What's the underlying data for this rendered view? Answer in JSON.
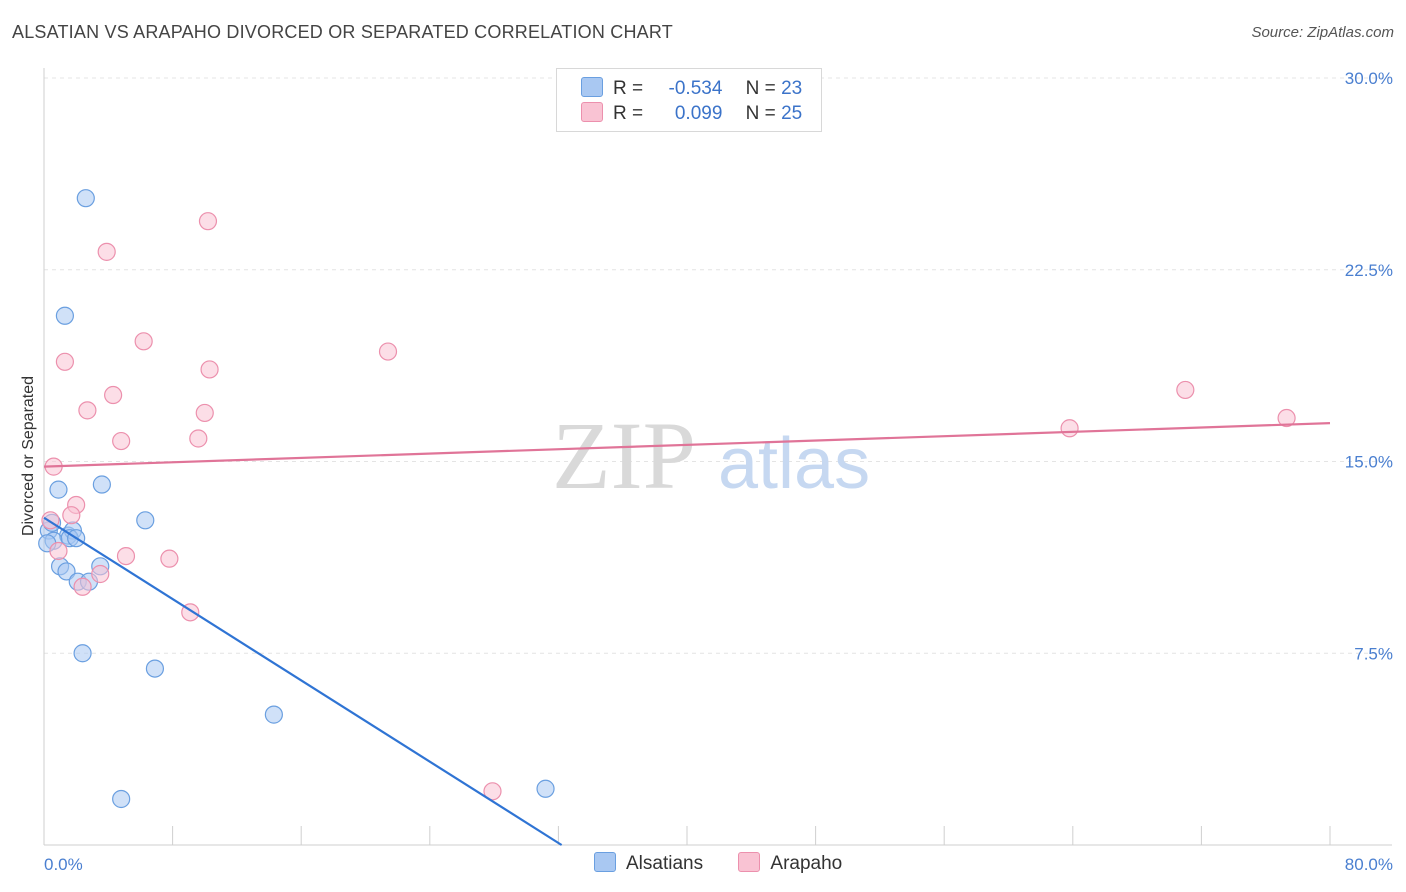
{
  "title": "ALSATIAN VS ARAPAHO DIVORCED OR SEPARATED CORRELATION CHART",
  "source": "Source: ZipAtlas.com",
  "watermark": {
    "zip": "ZIP",
    "atlas": "atlas"
  },
  "legend": {
    "rows": [
      {
        "r_label": "R =",
        "r_value": "-0.534",
        "n_label": "N =",
        "n_value": "23",
        "color": "#a9c8f2",
        "border": "#6a9fe0"
      },
      {
        "r_label": "R =",
        "r_value": "0.099",
        "n_label": "N =",
        "n_value": "25",
        "color": "#f9c3d3",
        "border": "#ec90ad"
      }
    ]
  },
  "bottom_legend": [
    {
      "label": "Alsatians",
      "color": "#a9c8f2",
      "border": "#6a9fe0"
    },
    {
      "label": "Arapaho",
      "color": "#f9c3d3",
      "border": "#ec90ad"
    }
  ],
  "chart_data": {
    "type": "scatter",
    "title": "ALSATIAN VS ARAPAHO DIVORCED OR SEPARATED CORRELATION CHART",
    "xlabel": "",
    "ylabel": "Divorced or Separated",
    "xlim": [
      0,
      80
    ],
    "ylim": [
      0,
      30
    ],
    "x_tick_labels": [
      "0.0%",
      "80.0%"
    ],
    "y_ticks": [
      7.5,
      15.0,
      22.5,
      30.0
    ],
    "y_tick_labels": [
      "7.5%",
      "15.0%",
      "22.5%",
      "30.0%"
    ],
    "grid": true,
    "series": [
      {
        "name": "Alsatians",
        "color": "#6a9fe0",
        "fill": "#a9c8f2",
        "line_color": "#2f74d4",
        "trend": {
          "x": [
            0,
            32.2
          ],
          "y": [
            12.8,
            0
          ]
        },
        "points": [
          [
            2.6,
            25.3
          ],
          [
            1.3,
            20.7
          ],
          [
            0.9,
            13.9
          ],
          [
            3.6,
            14.1
          ],
          [
            6.3,
            12.7
          ],
          [
            0.3,
            12.3
          ],
          [
            1.5,
            12.1
          ],
          [
            1.8,
            12.3
          ],
          [
            0.6,
            11.9
          ],
          [
            1.6,
            12.0
          ],
          [
            0.2,
            11.8
          ],
          [
            2.0,
            12.0
          ],
          [
            0.5,
            12.6
          ],
          [
            1.0,
            10.9
          ],
          [
            1.4,
            10.7
          ],
          [
            3.5,
            10.9
          ],
          [
            2.1,
            10.3
          ],
          [
            2.8,
            10.3
          ],
          [
            2.4,
            7.5
          ],
          [
            6.9,
            6.9
          ],
          [
            14.3,
            5.1
          ],
          [
            31.2,
            2.2
          ],
          [
            4.8,
            1.8
          ]
        ]
      },
      {
        "name": "Arapaho",
        "color": "#ec90ad",
        "fill": "#f9c3d3",
        "line_color": "#e07498",
        "trend": {
          "x": [
            0,
            80
          ],
          "y": [
            14.8,
            16.5
          ]
        },
        "points": [
          [
            10.2,
            24.4
          ],
          [
            3.9,
            23.2
          ],
          [
            6.2,
            19.7
          ],
          [
            21.4,
            19.3
          ],
          [
            1.3,
            18.9
          ],
          [
            10.3,
            18.6
          ],
          [
            4.3,
            17.6
          ],
          [
            2.7,
            17.0
          ],
          [
            10.0,
            16.9
          ],
          [
            9.6,
            15.9
          ],
          [
            4.8,
            15.8
          ],
          [
            63.8,
            16.3
          ],
          [
            71.0,
            17.8
          ],
          [
            77.3,
            16.7
          ],
          [
            0.6,
            14.8
          ],
          [
            2.0,
            13.3
          ],
          [
            1.7,
            12.9
          ],
          [
            0.4,
            12.7
          ],
          [
            0.9,
            11.5
          ],
          [
            5.1,
            11.3
          ],
          [
            7.8,
            11.2
          ],
          [
            3.5,
            10.6
          ],
          [
            2.4,
            10.1
          ],
          [
            9.1,
            9.1
          ],
          [
            27.9,
            2.1
          ]
        ]
      }
    ]
  }
}
